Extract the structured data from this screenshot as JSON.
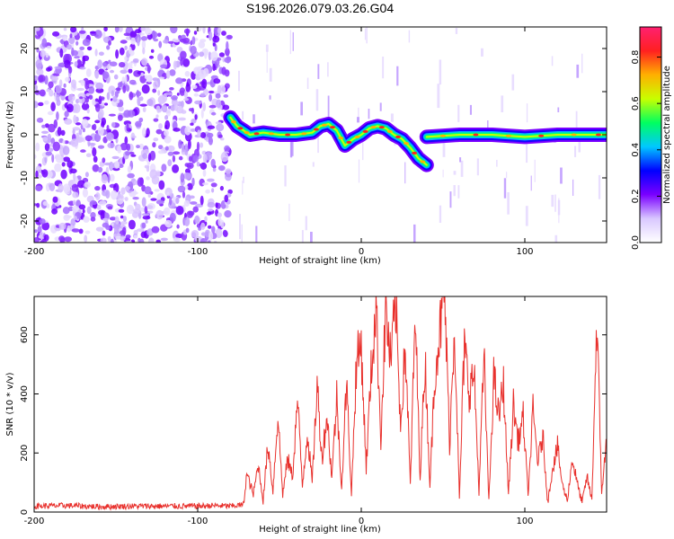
{
  "title": "S196.2026.079.03.26.G04",
  "chart_data": [
    {
      "type": "heatmap",
      "title": "S196.2026.079.03.26.G04",
      "xlabel": "Height of straight line (km)",
      "ylabel": "Frequency (Hz)",
      "xlim": [
        -200,
        150
      ],
      "ylim": [
        -25,
        25
      ],
      "x_ticks": [
        -200,
        -100,
        0,
        100
      ],
      "y_ticks": [
        -20,
        -10,
        0,
        10,
        20
      ],
      "colorbar": {
        "label": "Normalized spectral amplitude",
        "range": [
          0.0,
          0.93
        ],
        "ticks": [
          0.0,
          0.2,
          0.4,
          0.6,
          0.8
        ],
        "tick_labels": [
          "0.0",
          "0.2",
          "0.4",
          "0.6",
          "0.8"
        ],
        "colormap": [
          "#ffffff",
          "#d9c8ff",
          "#7a00ff",
          "#0000ff",
          "#00c8ff",
          "#00ff60",
          "#c8ff00",
          "#ffb000",
          "#ff2020",
          "#ff2070"
        ]
      },
      "noise_region_x": [
        -200,
        -80
      ],
      "ridge": {
        "x": [
          -80,
          -76,
          -72,
          -68,
          -60,
          -50,
          -40,
          -30,
          -25,
          -20,
          -15,
          -10,
          -5,
          0,
          5,
          10,
          15,
          20,
          25,
          30,
          35,
          40
        ],
        "y": [
          4,
          2,
          1,
          0,
          0.5,
          0,
          0,
          0.5,
          2,
          2.5,
          1,
          -2.5,
          -1,
          0,
          1.5,
          2,
          1.5,
          0,
          -1,
          -3,
          -5.5,
          -7
        ]
      },
      "ridge2": {
        "x": [
          40,
          60,
          80,
          100,
          120,
          140,
          150
        ],
        "y": [
          -0.5,
          0,
          0,
          -0.5,
          0,
          0,
          0
        ]
      },
      "grid": false
    },
    {
      "type": "line",
      "xlabel": "Height of straight line (km)",
      "ylabel": "SNR (10 * v/v)",
      "xlim": [
        -200,
        150
      ],
      "ylim": [
        0,
        730
      ],
      "x_ticks": [
        -200,
        -100,
        0,
        100
      ],
      "y_ticks": [
        0,
        200,
        400,
        600
      ],
      "color": "#e8302c",
      "grid": false,
      "series": [
        {
          "x": [
            -200,
            -180,
            -160,
            -140,
            -120,
            -100,
            -90,
            -80,
            -72,
            -70,
            -66,
            -63,
            -60,
            -57,
            -54,
            -51,
            -48,
            -45,
            -42,
            -39,
            -36,
            -33,
            -30,
            -27,
            -24,
            -21,
            -18,
            -15,
            -12,
            -9,
            -6,
            -3,
            0,
            3,
            6,
            9,
            12,
            15,
            18,
            21,
            24,
            27,
            30,
            33,
            36,
            39,
            42,
            45,
            48,
            51,
            54,
            57,
            60,
            63,
            66,
            69,
            72,
            75,
            78,
            81,
            84,
            87,
            90,
            93,
            96,
            99,
            102,
            105,
            108,
            111,
            114,
            117,
            120,
            123,
            126,
            129,
            132,
            135,
            138,
            141,
            144,
            147,
            150
          ],
          "y": [
            20,
            22,
            18,
            20,
            20,
            20,
            22,
            20,
            25,
            130,
            60,
            160,
            40,
            230,
            70,
            330,
            60,
            180,
            120,
            380,
            90,
            270,
            100,
            430,
            180,
            330,
            120,
            390,
            80,
            440,
            60,
            500,
            570,
            150,
            470,
            700,
            250,
            690,
            500,
            710,
            300,
            560,
            90,
            660,
            120,
            520,
            90,
            480,
            610,
            740,
            230,
            640,
            40,
            560,
            410,
            470,
            70,
            530,
            30,
            460,
            320,
            430,
            60,
            360,
            240,
            320,
            60,
            340,
            170,
            260,
            30,
            150,
            220,
            90,
            40,
            180,
            100,
            30,
            120,
            40,
            650,
            70,
            240
          ]
        }
      ]
    }
  ]
}
